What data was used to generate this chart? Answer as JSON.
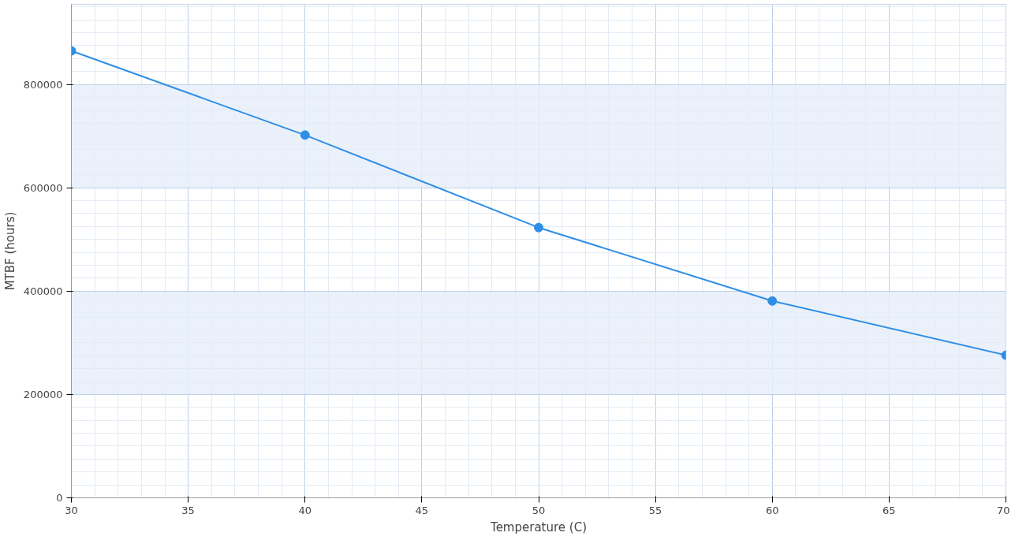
{
  "chart_data": {
    "type": "line",
    "xlabel": "Temperature (C)",
    "ylabel": "MTBF (hours)",
    "x": [
      30,
      40,
      50,
      60,
      70
    ],
    "series": [
      {
        "color": "#2f8ee6",
        "values": [
          865000,
          702000,
          523000,
          381000,
          276000
        ]
      }
    ],
    "xlim": [
      30,
      70
    ],
    "xticks": [
      30,
      35,
      40,
      45,
      50,
      55,
      60,
      65,
      70
    ],
    "ylim": [
      0,
      955000
    ],
    "yticks": [
      0,
      200000,
      400000,
      600000,
      800000
    ],
    "grid": true,
    "marker": "circle",
    "line_style": "solid"
  }
}
